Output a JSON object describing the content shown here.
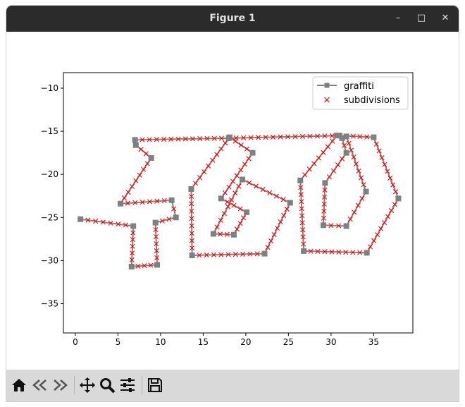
{
  "window": {
    "title": "Figure 1",
    "minimize_glyph": "–",
    "maximize_glyph": "□",
    "close_glyph": "✕"
  },
  "toolbar": {
    "buttons": [
      "home-icon",
      "back-icon",
      "forward-icon",
      "pan-icon",
      "zoom-icon",
      "configure-icon",
      "save-icon"
    ]
  },
  "chart_data": {
    "type": "line",
    "xlim": [
      -1.4,
      39.6
    ],
    "ylim": [
      -38.4,
      -8.2
    ],
    "xticks": [
      "0",
      "5",
      "10",
      "15",
      "20",
      "25",
      "30",
      "35"
    ],
    "yticks": [
      "−10",
      "−15",
      "−20",
      "−25",
      "−30",
      "−35"
    ],
    "xtick_values": [
      0,
      5,
      10,
      15,
      20,
      25,
      30,
      35
    ],
    "ytick_values": [
      -10,
      -15,
      -20,
      -25,
      -30,
      -35
    ],
    "grid": false,
    "legend_position": "top-right",
    "series": [
      {
        "name": "graffiti",
        "marker": "square",
        "color": "#808080",
        "strokes": [
          [
            [
              0.6,
              -25.2
            ],
            [
              6.8,
              -26.0
            ],
            [
              6.6,
              -30.7
            ],
            [
              9.6,
              -30.5
            ],
            [
              9.4,
              -25.6
            ],
            [
              11.8,
              -25.0
            ],
            [
              11.3,
              -23.0
            ],
            [
              5.3,
              -23.4
            ],
            [
              8.9,
              -18.1
            ],
            [
              7.1,
              -16.6
            ],
            [
              7.0,
              -16.0
            ],
            [
              18.0,
              -15.8
            ],
            [
              31.0,
              -15.5
            ],
            [
              35.0,
              -15.7
            ],
            [
              37.9,
              -22.8
            ],
            [
              34.2,
              -29.1
            ],
            [
              26.8,
              -28.9
            ],
            [
              26.4,
              -20.7
            ],
            [
              30.7,
              -15.5
            ]
          ],
          [
            [
              13.6,
              -21.7
            ],
            [
              13.7,
              -29.4
            ],
            [
              22.2,
              -29.2
            ],
            [
              25.2,
              -23.3
            ],
            [
              19.6,
              -20.6
            ],
            [
              16.2,
              -26.9
            ],
            [
              18.6,
              -27.0
            ],
            [
              20.1,
              -24.4
            ],
            [
              17.1,
              -22.8
            ],
            [
              20.8,
              -17.5
            ],
            [
              18.1,
              -15.7
            ],
            [
              13.6,
              -21.7
            ]
          ],
          [
            [
              31.8,
              -15.6
            ],
            [
              34.1,
              -22.0
            ],
            [
              31.8,
              -26.0
            ],
            [
              29.1,
              -25.9
            ],
            [
              29.3,
              -21.0
            ],
            [
              31.8,
              -17.5
            ],
            [
              31.3,
              -15.8
            ]
          ]
        ]
      },
      {
        "name": "subdivisions",
        "marker": "x",
        "color": "#ff0000",
        "spacing": 0.85
      }
    ]
  }
}
